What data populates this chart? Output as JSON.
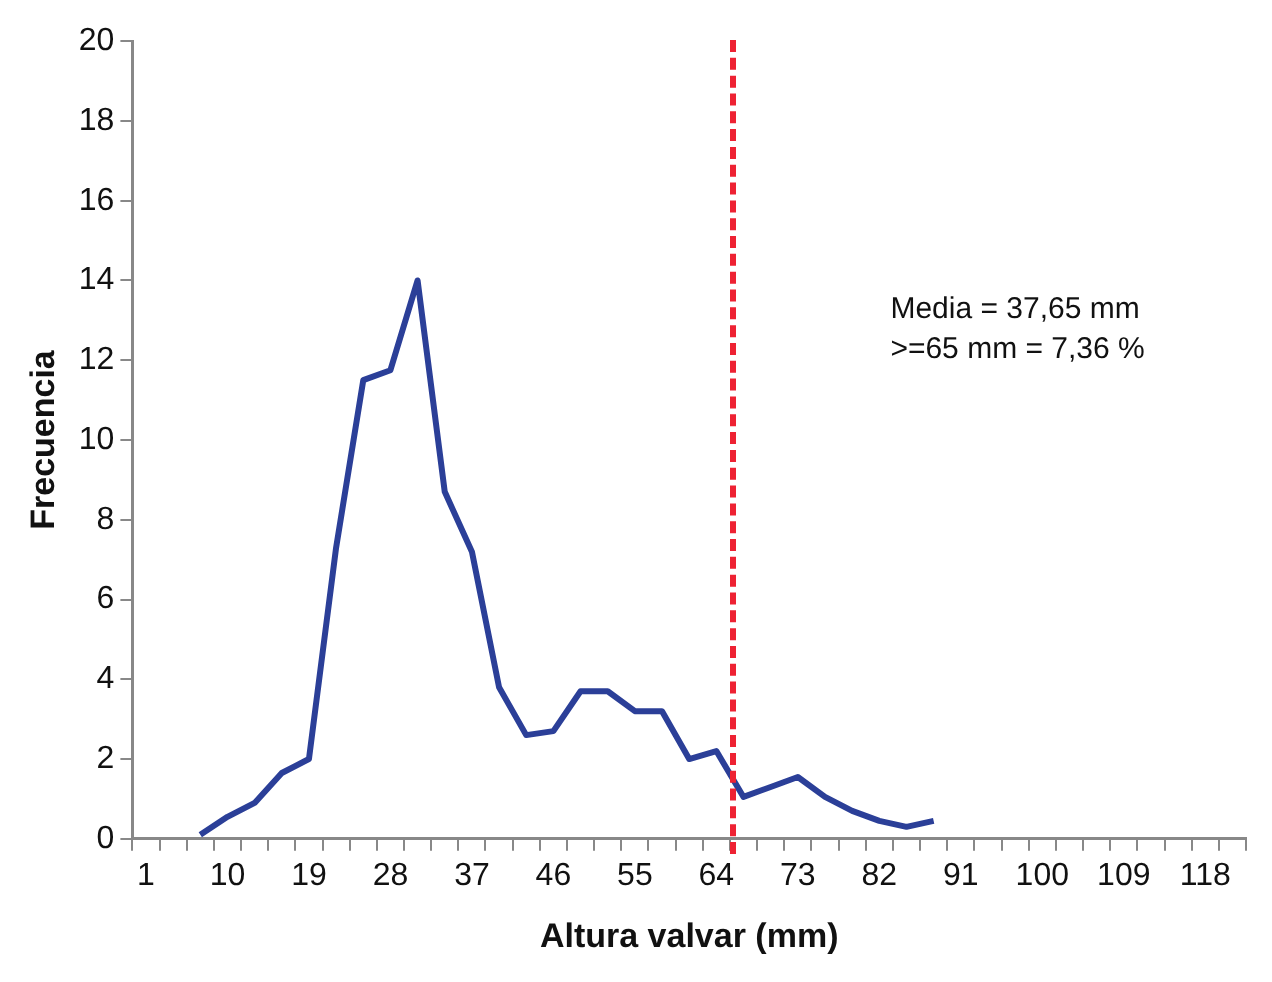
{
  "chart_data": {
    "type": "line",
    "xlabel": "Altura valvar (mm)",
    "ylabel": "Frecuencia",
    "categories": [
      "1",
      null,
      null,
      "10",
      null,
      null,
      "19",
      null,
      null,
      "28",
      null,
      null,
      "37",
      null,
      null,
      "46",
      null,
      null,
      "55",
      null,
      null,
      "64",
      null,
      null,
      "73",
      null,
      null,
      "82",
      null,
      null,
      "91",
      null,
      null,
      "100",
      null,
      null,
      "109",
      null,
      null,
      "118",
      null
    ],
    "series": [
      {
        "color": "#2b3f98",
        "values": [
          null,
          null,
          0.1,
          0.55,
          0.9,
          1.65,
          2.0,
          7.3,
          11.5,
          11.75,
          14.0,
          8.7,
          7.2,
          3.8,
          2.6,
          2.7,
          3.7,
          3.7,
          3.2,
          3.2,
          2.0,
          2.2,
          1.05,
          1.3,
          1.55,
          1.05,
          0.7,
          0.45,
          0.3,
          0.45,
          null,
          null,
          null,
          null,
          null,
          null,
          null,
          null,
          null,
          null,
          null
        ]
      }
    ],
    "ylim": [
      0,
      20
    ],
    "yticks": [
      0,
      2,
      4,
      6,
      8,
      10,
      12,
      14,
      16,
      18,
      20
    ],
    "grid": false,
    "legend": false,
    "marker": "none",
    "line_style": "solid",
    "annotations": [
      "Media = 37,65 mm",
      ">=65 mm = 7,36 %"
    ]
  }
}
